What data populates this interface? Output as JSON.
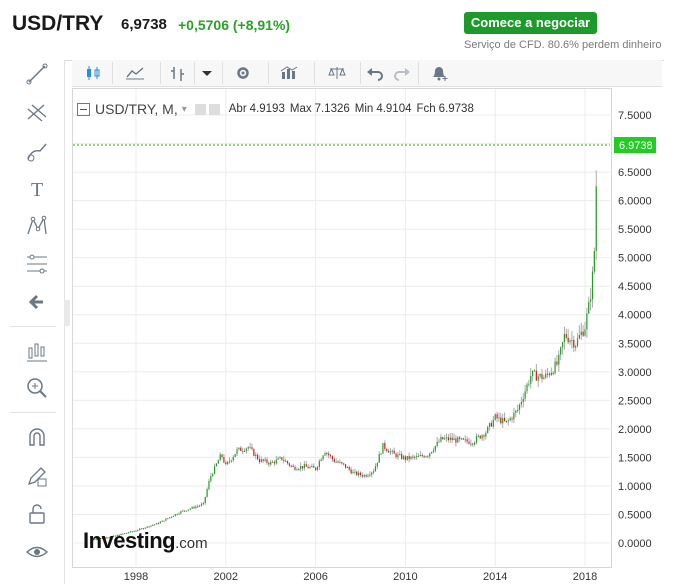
{
  "header": {
    "pair": "USD/TRY",
    "price": "6,9738",
    "change": "+0,5706 (+8,91%)",
    "cta_label": "Comece a negociar",
    "cfd_note": "Serviço de CFD. 80.6% perdem dinheiro"
  },
  "toolbar_left": [
    "line-tool-icon",
    "pitchfork-icon",
    "brush-icon",
    "text-icon",
    "pattern-icon",
    "fib-icon",
    "back-arrow-icon",
    "indicators-icon",
    "zoom-icon",
    "magnet-icon",
    "lock-edit-icon",
    "unlock-icon",
    "eye-icon"
  ],
  "toolbar_top": [
    "candles-icon",
    "line-chart-icon",
    "compare-icon",
    "dropdown-icon",
    "settings-icon",
    "studies-icon",
    "scales-icon",
    "undo-icon",
    "redo-icon",
    "alert-icon"
  ],
  "legend": {
    "symbol": "USD/TRY, M,",
    "open_label": "Abr",
    "open": "4.9193",
    "high_label": "Max",
    "high": "7.1326",
    "low_label": "Min",
    "low": "4.9104",
    "close_label": "Fch",
    "close": "6.9738"
  },
  "logo": {
    "main": "Investing",
    "suffix": ".com"
  },
  "colors": {
    "up": "#1e9e1e",
    "down": "#c81e1e",
    "price_tag": "#22cc22",
    "grid": "#ececec"
  },
  "chart_data": {
    "type": "candlestick",
    "series": "USD/TRY monthly",
    "x_ticks": [
      "1998",
      "2002",
      "2006",
      "2010",
      "2014",
      "2018"
    ],
    "y_ticks": [
      "7.5000",
      "7.0000",
      "6.5000",
      "6.0000",
      "5.5000",
      "5.0000",
      "4.5000",
      "4.0000",
      "3.5000",
      "3.0000",
      "2.5000",
      "2.0000",
      "1.5000",
      "1.0000",
      "0.5000",
      "0.0000"
    ],
    "ylim": [
      -0.1,
      7.9
    ],
    "current_price_label": "6.9738",
    "current_price": 6.9738,
    "anchors": [
      [
        1996.0,
        0.06
      ],
      [
        1997.0,
        0.12
      ],
      [
        1998.0,
        0.22
      ],
      [
        1999.0,
        0.35
      ],
      [
        2000.0,
        0.55
      ],
      [
        2001.0,
        0.68
      ],
      [
        2001.3,
        1.15
      ],
      [
        2001.8,
        1.55
      ],
      [
        2002.0,
        1.35
      ],
      [
        2002.5,
        1.62
      ],
      [
        2003.0,
        1.68
      ],
      [
        2003.5,
        1.45
      ],
      [
        2004.0,
        1.4
      ],
      [
        2004.5,
        1.48
      ],
      [
        2005.0,
        1.32
      ],
      [
        2005.5,
        1.34
      ],
      [
        2006.0,
        1.3
      ],
      [
        2006.4,
        1.62
      ],
      [
        2006.8,
        1.45
      ],
      [
        2007.3,
        1.35
      ],
      [
        2007.7,
        1.22
      ],
      [
        2008.2,
        1.18
      ],
      [
        2008.6,
        1.28
      ],
      [
        2009.0,
        1.7
      ],
      [
        2009.5,
        1.55
      ],
      [
        2010.0,
        1.48
      ],
      [
        2010.5,
        1.5
      ],
      [
        2011.0,
        1.55
      ],
      [
        2011.6,
        1.82
      ],
      [
        2012.0,
        1.82
      ],
      [
        2012.6,
        1.78
      ],
      [
        2013.0,
        1.78
      ],
      [
        2013.6,
        1.95
      ],
      [
        2014.0,
        2.2
      ],
      [
        2014.5,
        2.1
      ],
      [
        2015.0,
        2.33
      ],
      [
        2015.6,
        2.95
      ],
      [
        2016.2,
        2.9
      ],
      [
        2016.8,
        3.15
      ],
      [
        2017.1,
        3.65
      ],
      [
        2017.6,
        3.5
      ],
      [
        2018.0,
        3.8
      ],
      [
        2018.2,
        4.2
      ],
      [
        2018.4,
        4.9
      ],
      [
        2018.55,
        6.97
      ]
    ]
  }
}
